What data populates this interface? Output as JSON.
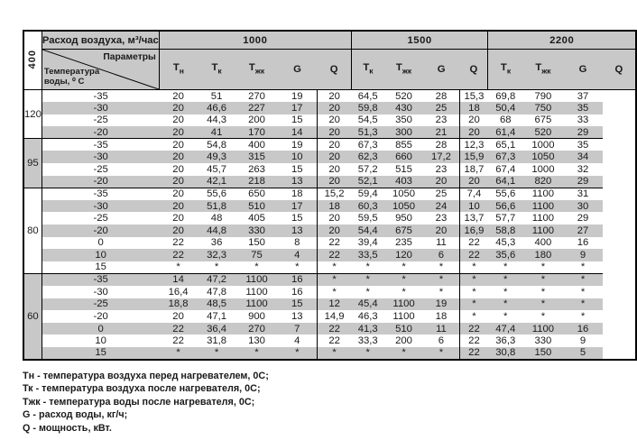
{
  "colors": {
    "border": "#000000",
    "header_bg": "#c8c8c8",
    "alt_row_bg": "#c8c8c8",
    "page_bg": "#ffffff"
  },
  "table": {
    "airflow_label": "400",
    "flow_header": "Расход воздуха, м³/час",
    "params_label": "Параметры",
    "water_temp_label": "Температура воды, ⁰ С",
    "sections": [
      {
        "flow": "1000",
        "columns": [
          "Т_н",
          "Т_к",
          "Т_жк",
          "G",
          "Q"
        ]
      },
      {
        "flow": "1500",
        "columns": [
          "Т_к",
          "Т_жк",
          "G",
          "Q"
        ]
      },
      {
        "flow": "2200",
        "columns": [
          "Т_к",
          "Т_жк",
          "G",
          "Q"
        ]
      }
    ],
    "groups": [
      {
        "water_temp": "120",
        "rows": [
          [
            "-35",
            "20",
            "51",
            "270",
            "19",
            "20",
            "64,5",
            "520",
            "28",
            "15,3",
            "69,8",
            "790",
            "37"
          ],
          [
            "-30",
            "20",
            "46,6",
            "227",
            "17",
            "20",
            "59,8",
            "430",
            "25",
            "18",
            "50,4",
            "750",
            "35"
          ],
          [
            "-25",
            "20",
            "44,3",
            "200",
            "15",
            "20",
            "54,5",
            "350",
            "23",
            "20",
            "68",
            "675",
            "33"
          ],
          [
            "-20",
            "20",
            "41",
            "170",
            "14",
            "20",
            "51,3",
            "300",
            "21",
            "20",
            "61,4",
            "520",
            "29"
          ]
        ]
      },
      {
        "water_temp": "95",
        "rows": [
          [
            "-35",
            "20",
            "54,8",
            "400",
            "19",
            "20",
            "67,3",
            "855",
            "28",
            "12,3",
            "65,1",
            "1000",
            "35"
          ],
          [
            "-30",
            "20",
            "49,3",
            "315",
            "10",
            "20",
            "62,3",
            "660",
            "17,2",
            "15,9",
            "67,3",
            "1050",
            "34"
          ],
          [
            "-25",
            "20",
            "45,7",
            "263",
            "15",
            "20",
            "57,2",
            "515",
            "23",
            "18,7",
            "67,4",
            "1000",
            "32"
          ],
          [
            "-20",
            "20",
            "42,1",
            "218",
            "13",
            "20",
            "52,1",
            "403",
            "20",
            "20",
            "64,1",
            "820",
            "29"
          ]
        ]
      },
      {
        "water_temp": "80",
        "rows": [
          [
            "-35",
            "20",
            "55,6",
            "650",
            "18",
            "15,2",
            "59,4",
            "1050",
            "25",
            "7,4",
            "55,6",
            "1100",
            "31"
          ],
          [
            "-30",
            "20",
            "51,8",
            "510",
            "17",
            "18",
            "60,3",
            "1050",
            "24",
            "10",
            "56,6",
            "1100",
            "30"
          ],
          [
            "-25",
            "20",
            "48",
            "405",
            "15",
            "20",
            "59,5",
            "950",
            "23",
            "13,7",
            "57,7",
            "1100",
            "29"
          ],
          [
            "-20",
            "20",
            "44,8",
            "330",
            "13",
            "20",
            "54,4",
            "675",
            "20",
            "16,9",
            "58,8",
            "1100",
            "27"
          ],
          [
            "0",
            "22",
            "36",
            "150",
            "8",
            "22",
            "39,4",
            "235",
            "11",
            "22",
            "45,3",
            "400",
            "16"
          ],
          [
            "10",
            "22",
            "32,3",
            "75",
            "4",
            "22",
            "33,5",
            "120",
            "6",
            "22",
            "35,6",
            "180",
            "9"
          ],
          [
            "15",
            "*",
            "*",
            "*",
            "*",
            "*",
            "*",
            "*",
            "*",
            "*",
            "*",
            "*",
            "*"
          ]
        ]
      },
      {
        "water_temp": "60",
        "rows": [
          [
            "-35",
            "14",
            "47,2",
            "1100",
            "16",
            "*",
            "*",
            "*",
            "*",
            "*",
            "*",
            "*",
            "*"
          ],
          [
            "-30",
            "16,4",
            "47,8",
            "1100",
            "16",
            "*",
            "*",
            "*",
            "*",
            "*",
            "*",
            "*",
            "*"
          ],
          [
            "-25",
            "18,8",
            "48,5",
            "1100",
            "15",
            "12",
            "45,4",
            "1100",
            "19",
            "*",
            "*",
            "*",
            "*"
          ],
          [
            "-20",
            "20",
            "47,1",
            "900",
            "13",
            "14,9",
            "46,3",
            "1100",
            "18",
            "*",
            "*",
            "*",
            "*"
          ],
          [
            "0",
            "22",
            "36,4",
            "270",
            "7",
            "22",
            "41,3",
            "510",
            "11",
            "22",
            "47,4",
            "1100",
            "16"
          ],
          [
            "10",
            "22",
            "31,8",
            "130",
            "4",
            "22",
            "33,3",
            "200",
            "6",
            "22",
            "36,3",
            "330",
            "9"
          ],
          [
            "15",
            "*",
            "*",
            "*",
            "*",
            "*",
            "*",
            "*",
            "*",
            "22",
            "30,8",
            "150",
            "5"
          ]
        ]
      }
    ]
  },
  "legend": {
    "lines": [
      "Тн - температура воздуха перед нагревателем, 0С;",
      "Тк - температура воздуха после нагревателя, 0С;",
      "Тжк - температура воды после нагревателя, 0С;",
      "G - расход воды, кг/ч;",
      "Q - мощность, кВт."
    ]
  }
}
